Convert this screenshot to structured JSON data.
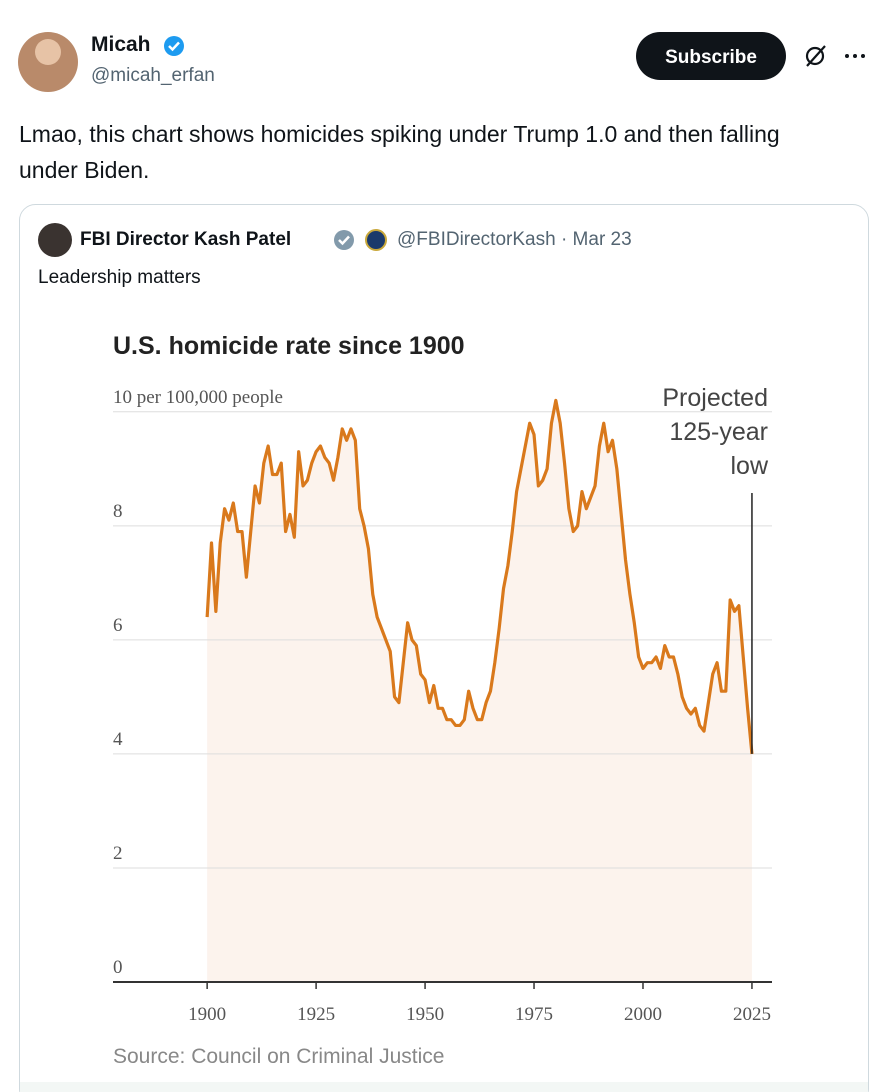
{
  "tweet": {
    "author": "Micah",
    "handle": "@micah_erfan",
    "button": "Subscribe",
    "text": "Lmao, this chart shows homicides spiking under Trump 1.0 and then falling under Biden."
  },
  "quote": {
    "author": "FBI Director Kash Patel",
    "handle_date": "@FBIDirectorKash · Mar 23",
    "text": "Leadership matters"
  },
  "chart_data": {
    "type": "line",
    "title": "U.S. homicide rate since 1900",
    "source": "Source: Council on Criminal Justice",
    "annotation": [
      "Projected",
      "125-year",
      "low"
    ],
    "color": "#d9791c",
    "area_color": "#fcf3ed",
    "grid": true,
    "xlim": [
      1878.4,
      2029.6
    ],
    "ylim": [
      0,
      10.4
    ],
    "xticks": [
      1900,
      1925,
      1950,
      1975,
      2000,
      2025
    ],
    "yticks": [
      0,
      2,
      4,
      6,
      8,
      {
        "value": 10,
        "label": "10 per 100,000 people"
      }
    ],
    "x": [
      1900,
      1901,
      1902,
      1903,
      1904,
      1905,
      1906,
      1907,
      1908,
      1909,
      1910,
      1911,
      1912,
      1913,
      1914,
      1915,
      1916,
      1917,
      1918,
      1919,
      1920,
      1921,
      1922,
      1923,
      1924,
      1925,
      1926,
      1927,
      1928,
      1929,
      1930,
      1931,
      1932,
      1933,
      1934,
      1935,
      1936,
      1937,
      1938,
      1939,
      1940,
      1941,
      1942,
      1943,
      1944,
      1945,
      1946,
      1947,
      1948,
      1949,
      1950,
      1951,
      1952,
      1953,
      1954,
      1955,
      1956,
      1957,
      1958,
      1959,
      1960,
      1961,
      1962,
      1963,
      1964,
      1965,
      1966,
      1967,
      1968,
      1969,
      1970,
      1971,
      1972,
      1973,
      1974,
      1975,
      1976,
      1977,
      1978,
      1979,
      1980,
      1981,
      1982,
      1983,
      1984,
      1985,
      1986,
      1987,
      1988,
      1989,
      1990,
      1991,
      1992,
      1993,
      1994,
      1995,
      1996,
      1997,
      1998,
      1999,
      2000,
      2001,
      2002,
      2003,
      2004,
      2005,
      2006,
      2007,
      2008,
      2009,
      2010,
      2011,
      2012,
      2013,
      2014,
      2015,
      2016,
      2017,
      2018,
      2019,
      2020,
      2021,
      2022,
      2023,
      2024,
      2025
    ],
    "values": [
      6.4,
      7.7,
      6.5,
      7.7,
      8.3,
      8.1,
      8.4,
      7.9,
      7.9,
      7.1,
      7.9,
      8.7,
      8.4,
      9.1,
      9.4,
      8.9,
      8.9,
      9.1,
      7.9,
      8.2,
      7.8,
      9.3,
      8.7,
      8.8,
      9.1,
      9.3,
      9.4,
      9.2,
      9.1,
      8.8,
      9.2,
      9.7,
      9.5,
      9.7,
      9.5,
      8.3,
      8.0,
      7.6,
      6.8,
      6.4,
      6.2,
      6.0,
      5.8,
      5.0,
      4.9,
      5.6,
      6.3,
      6.0,
      5.9,
      5.4,
      5.3,
      4.9,
      5.2,
      4.8,
      4.8,
      4.6,
      4.6,
      4.5,
      4.5,
      4.6,
      5.1,
      4.8,
      4.6,
      4.6,
      4.9,
      5.1,
      5.6,
      6.2,
      6.9,
      7.3,
      7.9,
      8.6,
      9.0,
      9.4,
      9.8,
      9.6,
      8.7,
      8.8,
      9.0,
      9.8,
      10.2,
      9.8,
      9.1,
      8.3,
      7.9,
      8.0,
      8.6,
      8.3,
      8.5,
      8.7,
      9.4,
      9.8,
      9.3,
      9.5,
      9.0,
      8.2,
      7.4,
      6.8,
      6.3,
      5.7,
      5.5,
      5.6,
      5.6,
      5.7,
      5.5,
      5.9,
      5.7,
      5.7,
      5.4,
      5.0,
      4.8,
      4.7,
      4.8,
      4.5,
      4.4,
      4.9,
      5.4,
      5.6,
      5.1,
      5.1,
      6.7,
      6.5,
      6.6,
      5.7,
      4.8,
      4.0
    ]
  }
}
